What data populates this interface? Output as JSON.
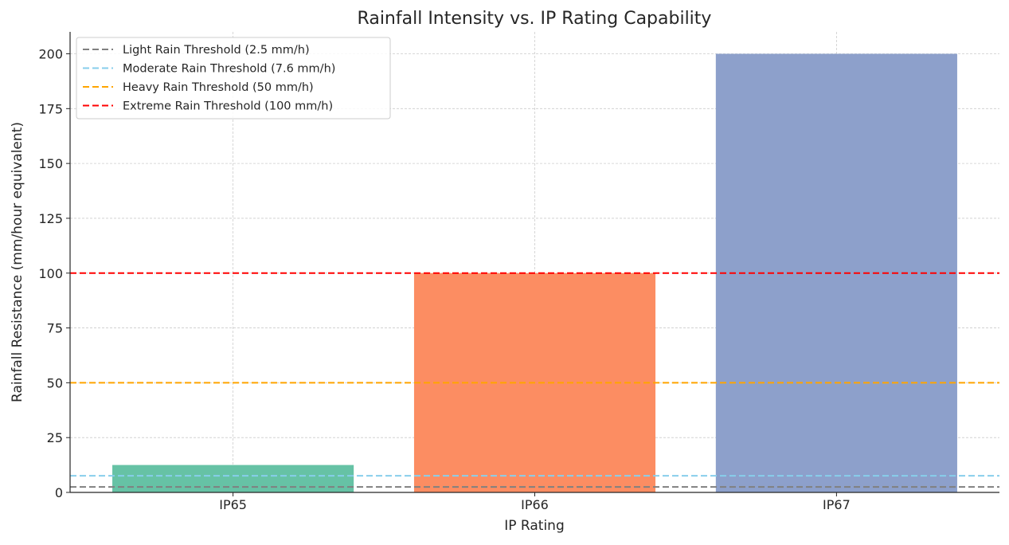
{
  "chart_data": {
    "type": "bar",
    "title": "Rainfall Intensity vs. IP Rating Capability",
    "xlabel": "IP Rating",
    "ylabel": "Rainfall Resistance (mm/hour equivalent)",
    "categories": [
      "IP65",
      "IP66",
      "IP67"
    ],
    "values": [
      12.5,
      100,
      200
    ],
    "bar_colors": [
      "#66c2a5",
      "#fc8d62",
      "#8da0cb"
    ],
    "ylim": [
      0,
      210
    ],
    "yticks": [
      0,
      25,
      50,
      75,
      100,
      125,
      150,
      175,
      200
    ],
    "grid": true,
    "legend_position": "top-left",
    "thresholds": [
      {
        "name": "Light Rain Threshold (2.5 mm/h)",
        "value": 2.5,
        "color": "#808080"
      },
      {
        "name": "Moderate Rain Threshold (7.6 mm/h)",
        "value": 7.6,
        "color": "#87ceeb"
      },
      {
        "name": "Heavy Rain Threshold (50 mm/h)",
        "value": 50,
        "color": "#ffa500"
      },
      {
        "name": "Extreme Rain Threshold (100 mm/h)",
        "value": 100,
        "color": "#ff0000"
      }
    ]
  }
}
